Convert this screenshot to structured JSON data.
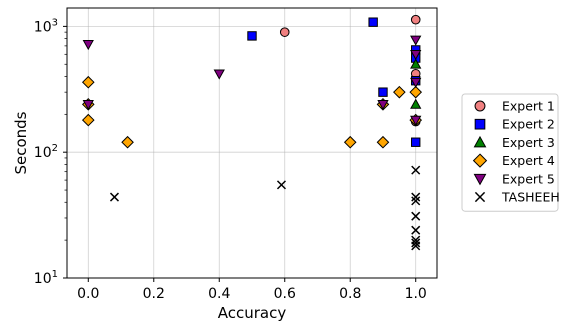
{
  "chart_data": {
    "type": "scatter",
    "title": "",
    "xlabel": "Accuracy",
    "ylabel": "Seconds",
    "xlim": [
      -0.065,
      1.065
    ],
    "ylim": [
      10,
      1400
    ],
    "yscale": "log",
    "grid": true,
    "legend_position": "center-right, outside plot",
    "x_ticks": [
      0.0,
      0.2,
      0.4,
      0.6,
      0.8,
      1.0
    ],
    "x_tick_labels": [
      "0.0",
      "0.2",
      "0.4",
      "0.6",
      "0.8",
      "1.0"
    ],
    "y_ticks": [
      10,
      100,
      1000
    ],
    "y_tick_labels": [
      "10",
      "10",
      "10"
    ],
    "y_tick_exponents": [
      "1",
      "2",
      "3"
    ],
    "series": [
      {
        "name": "Expert 1",
        "marker": "circle",
        "color": "#f08080",
        "points": [
          [
            0.6,
            900
          ],
          [
            1.0,
            1130
          ],
          [
            1.0,
            420
          ],
          [
            1.0,
            175
          ]
        ]
      },
      {
        "name": "Expert 2",
        "marker": "square",
        "color": "#0000ff",
        "points": [
          [
            0.5,
            840
          ],
          [
            0.87,
            1080
          ],
          [
            0.9,
            300
          ],
          [
            1.0,
            650
          ],
          [
            1.0,
            560
          ],
          [
            1.0,
            370
          ],
          [
            1.0,
            120
          ]
        ]
      },
      {
        "name": "Expert 3",
        "marker": "triangle-up",
        "color": "#008000",
        "points": [
          [
            1.0,
            500
          ],
          [
            1.0,
            240
          ]
        ]
      },
      {
        "name": "Expert 4",
        "marker": "diamond",
        "color": "#ffa500",
        "points": [
          [
            0.0,
            360
          ],
          [
            0.0,
            240
          ],
          [
            0.0,
            180
          ],
          [
            0.12,
            120
          ],
          [
            0.8,
            120
          ],
          [
            0.9,
            240
          ],
          [
            0.9,
            120
          ],
          [
            0.95,
            300
          ],
          [
            1.0,
            300
          ],
          [
            1.0,
            180
          ]
        ]
      },
      {
        "name": "Expert 5",
        "marker": "triangle-down",
        "color": "#800080",
        "points": [
          [
            0.0,
            720
          ],
          [
            0.0,
            240
          ],
          [
            0.4,
            420
          ],
          [
            0.9,
            240
          ],
          [
            1.0,
            780
          ],
          [
            1.0,
            600
          ],
          [
            1.0,
            360
          ],
          [
            1.0,
            180
          ]
        ]
      },
      {
        "name": "TASHEEH",
        "marker": "x",
        "color": "#000000",
        "points": [
          [
            0.08,
            44
          ],
          [
            0.59,
            55
          ],
          [
            1.0,
            72
          ],
          [
            1.0,
            44
          ],
          [
            1.0,
            41
          ],
          [
            1.0,
            31
          ],
          [
            1.0,
            24
          ],
          [
            1.0,
            20
          ],
          [
            1.0,
            19
          ],
          [
            1.0,
            18
          ]
        ]
      }
    ]
  }
}
